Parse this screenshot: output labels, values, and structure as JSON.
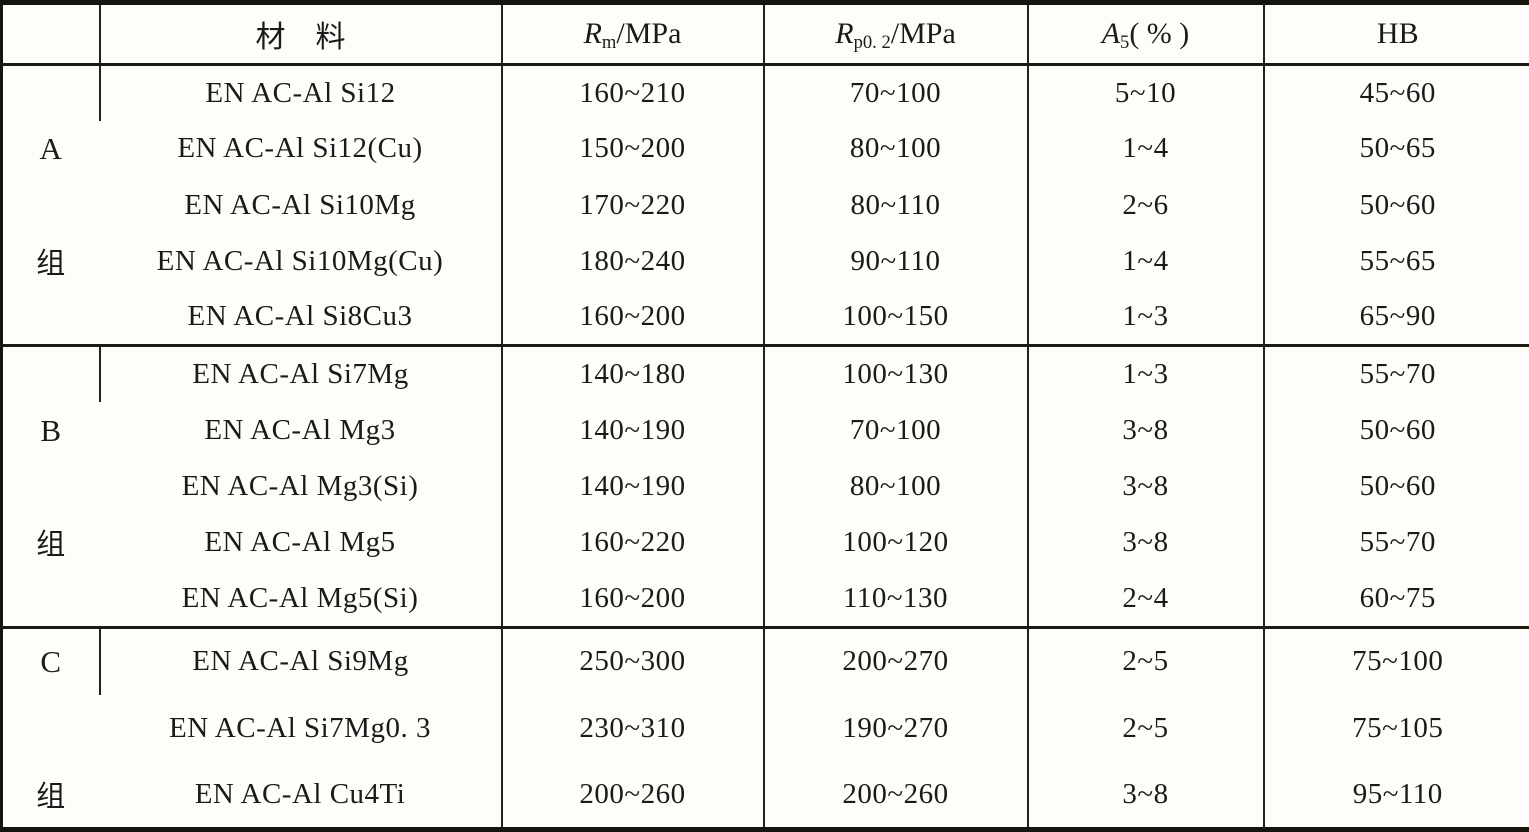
{
  "table": {
    "header": {
      "group_col": "",
      "material": "材　料",
      "rm": {
        "base": "R",
        "sub": "m",
        "rest": "/MPa"
      },
      "rp": {
        "base": "R",
        "sub": "p0. 2",
        "rest": "/MPa"
      },
      "a5": {
        "base": "A",
        "sub": "5",
        "rest": "( % )"
      },
      "hb": "HB"
    },
    "groups": [
      {
        "label": "A",
        "label2": "组",
        "rows": [
          {
            "material": "EN AC-Al Si12",
            "rm": "160~210",
            "rp": "70~100",
            "a5": "5~10",
            "hb": "45~60"
          },
          {
            "material": "EN AC-Al Si12(Cu)",
            "rm": "150~200",
            "rp": "80~100",
            "a5": "1~4",
            "hb": "50~65"
          },
          {
            "material": "EN AC-Al Si10Mg",
            "rm": "170~220",
            "rp": "80~110",
            "a5": "2~6",
            "hb": "50~60"
          },
          {
            "material": "EN AC-Al Si10Mg(Cu)",
            "rm": "180~240",
            "rp": "90~110",
            "a5": "1~4",
            "hb": "55~65"
          },
          {
            "material": "EN AC-Al Si8Cu3",
            "rm": "160~200",
            "rp": "100~150",
            "a5": "1~3",
            "hb": "65~90"
          }
        ]
      },
      {
        "label": "B",
        "label2": "组",
        "rows": [
          {
            "material": "EN AC-Al Si7Mg",
            "rm": "140~180",
            "rp": "100~130",
            "a5": "1~3",
            "hb": "55~70"
          },
          {
            "material": "EN AC-Al Mg3",
            "rm": "140~190",
            "rp": "70~100",
            "a5": "3~8",
            "hb": "50~60"
          },
          {
            "material": "EN AC-Al Mg3(Si)",
            "rm": "140~190",
            "rp": "80~100",
            "a5": "3~8",
            "hb": "50~60"
          },
          {
            "material": "EN AC-Al Mg5",
            "rm": "160~220",
            "rp": "100~120",
            "a5": "3~8",
            "hb": "55~70"
          },
          {
            "material": "EN AC-Al Mg5(Si)",
            "rm": "160~200",
            "rp": "110~130",
            "a5": "2~4",
            "hb": "60~75"
          }
        ]
      },
      {
        "label": "C",
        "label2": "组",
        "rows": [
          {
            "material": "EN AC-Al Si9Mg",
            "rm": "250~300",
            "rp": "200~270",
            "a5": "2~5",
            "hb": "75~100"
          },
          {
            "material": "EN AC-Al Si7Mg0. 3",
            "rm": "230~310",
            "rp": "190~270",
            "a5": "2~5",
            "hb": "75~105"
          },
          {
            "material": "EN AC-Al Cu4Ti",
            "rm": "200~260",
            "rp": "200~260",
            "a5": "3~8",
            "hb": "95~110"
          }
        ]
      }
    ]
  }
}
